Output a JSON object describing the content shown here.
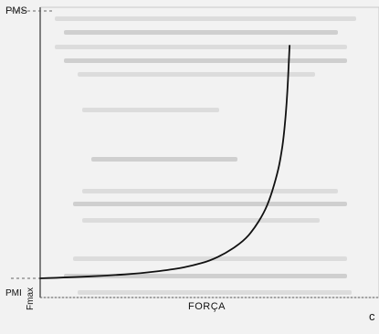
{
  "chart_data": {
    "type": "line",
    "title": "",
    "xlabel": "FORÇA",
    "ylabel": "",
    "y_tick_labels": {
      "top": "PMS",
      "bottom": "PMI"
    },
    "x_tick_labels": {
      "right": "Fmax"
    },
    "corner_text": "c",
    "xlim": [
      0,
      100
    ],
    "ylim": [
      0,
      100
    ],
    "grid": false,
    "legend": "none",
    "series": [
      {
        "color": "#111111",
        "x": [
          0,
          10,
          20,
          30,
          40,
          45,
          50,
          55,
          60,
          63,
          66,
          68,
          70,
          71,
          72,
          73,
          73.6
        ],
        "y": [
          0,
          0.5,
          1.2,
          2.2,
          4,
          5.5,
          7.5,
          11,
          16,
          21,
          28,
          35,
          45,
          52,
          62,
          80,
          100
        ]
      }
    ],
    "reference_lines": [
      {
        "orientation": "horizontal",
        "at_y": 0,
        "style": "dashed"
      },
      {
        "orientation": "horizontal",
        "at_y": 100,
        "style": "dashed"
      }
    ]
  }
}
